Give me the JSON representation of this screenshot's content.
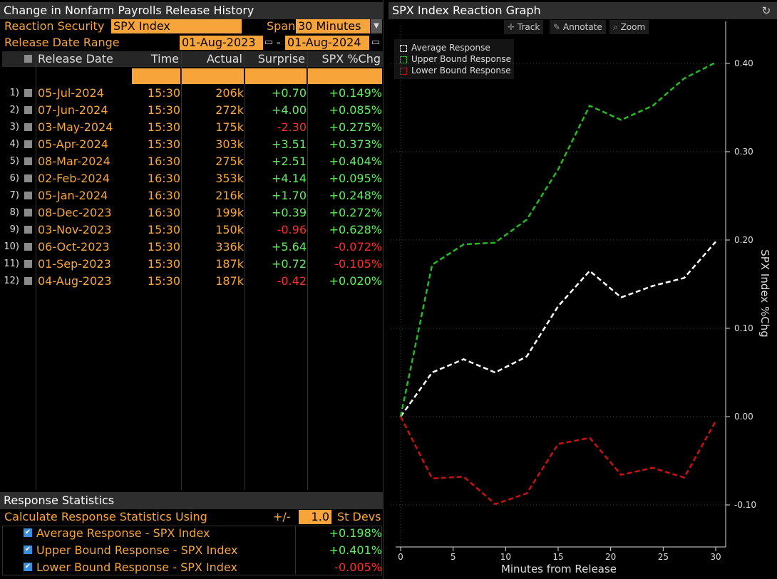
{
  "left_panel": {
    "title": "Change in Nonfarm Payrolls Release History",
    "reaction_security_label": "Reaction Security",
    "reaction_security_value": "SPX Index",
    "span_label": "Span",
    "span_value": "30 Minutes",
    "release_range_label": "Release Date Range",
    "range_start": "01-Aug-2023",
    "range_end": "01-Aug-2024",
    "range_sep": "-",
    "columns": [
      "Release Date",
      "Time",
      "Actual",
      "Surprise",
      "SPX %Chg"
    ],
    "rows": [
      {
        "idx": "1)",
        "date": "05-Jul-2024",
        "time": "15:30",
        "actual": "206k",
        "surprise": "+0.70",
        "chg": "+0.149%"
      },
      {
        "idx": "2)",
        "date": "07-Jun-2024",
        "time": "15:30",
        "actual": "272k",
        "surprise": "+4.00",
        "chg": "+0.085%"
      },
      {
        "idx": "3)",
        "date": "03-May-2024",
        "time": "15:30",
        "actual": "175k",
        "surprise": "-2.30",
        "chg": "+0.275%"
      },
      {
        "idx": "4)",
        "date": "05-Apr-2024",
        "time": "15:30",
        "actual": "303k",
        "surprise": "+3.51",
        "chg": "+0.373%"
      },
      {
        "idx": "5)",
        "date": "08-Mar-2024",
        "time": "16:30",
        "actual": "275k",
        "surprise": "+2.51",
        "chg": "+0.404%"
      },
      {
        "idx": "6)",
        "date": "02-Feb-2024",
        "time": "16:30",
        "actual": "353k",
        "surprise": "+4.14",
        "chg": "+0.095%"
      },
      {
        "idx": "7)",
        "date": "05-Jan-2024",
        "time": "16:30",
        "actual": "216k",
        "surprise": "+1.70",
        "chg": "+0.248%"
      },
      {
        "idx": "8)",
        "date": "08-Dec-2023",
        "time": "16:30",
        "actual": "199k",
        "surprise": "+0.39",
        "chg": "+0.272%"
      },
      {
        "idx": "9)",
        "date": "03-Nov-2023",
        "time": "15:30",
        "actual": "150k",
        "surprise": "-0.96",
        "chg": "+0.628%"
      },
      {
        "idx": "10)",
        "date": "06-Oct-2023",
        "time": "15:30",
        "actual": "336k",
        "surprise": "+5.64",
        "chg": "-0.072%"
      },
      {
        "idx": "11)",
        "date": "01-Sep-2023",
        "time": "15:30",
        "actual": "187k",
        "surprise": "+0.72",
        "chg": "-0.105%"
      },
      {
        "idx": "12)",
        "date": "04-Aug-2023",
        "time": "15:30",
        "actual": "187k",
        "surprise": "-0.42",
        "chg": "+0.020%"
      }
    ],
    "stats": {
      "title": "Response Statistics",
      "calc_label": "Calculate Response Statistics Using",
      "pm": "+/-",
      "stdev_value": "1.0",
      "stdev_label": "St Devs",
      "items": [
        {
          "label": "Average Response - SPX Index",
          "value": "+0.198%"
        },
        {
          "label": "Upper Bound Response - SPX Index",
          "value": "+0.401%"
        },
        {
          "label": "Lower Bound Response - SPX Index",
          "value": "-0.005%"
        }
      ]
    }
  },
  "right_panel": {
    "title": "SPX Index Reaction Graph",
    "toolbar": {
      "track": "Track",
      "annotate": "Annotate",
      "zoom": "Zoom"
    }
  },
  "colors": {
    "orange": "#f7a53a",
    "positive": "#5ef05e",
    "negative": "#ff2c2c",
    "average": "#ffffff",
    "upper": "#22bb22",
    "lower": "#cc1111"
  },
  "chart_data": {
    "type": "line",
    "xlabel": "Minutes from Release",
    "ylabel": "SPX Index %Chg",
    "xlim": [
      0,
      30
    ],
    "ylim": [
      -0.15,
      0.45
    ],
    "xticks": [
      0,
      5,
      10,
      15,
      20,
      25,
      30
    ],
    "yticks": [
      -0.1,
      0.0,
      0.1,
      0.2,
      0.3,
      0.4
    ],
    "ytick_labels": [
      "-0.10",
      "0.00",
      "0.10",
      "0.20",
      "0.30",
      "0.40"
    ],
    "legend_position": "top-left",
    "grid": false,
    "x": [
      0,
      3,
      6,
      9,
      12,
      15,
      18,
      21,
      24,
      27,
      30
    ],
    "series": [
      {
        "name": "Average Response",
        "values": [
          0.0,
          0.05,
          0.065,
          0.05,
          0.068,
          0.125,
          0.165,
          0.135,
          0.148,
          0.157,
          0.198
        ]
      },
      {
        "name": "Upper Bound Response",
        "values": [
          0.0,
          0.172,
          0.195,
          0.197,
          0.223,
          0.28,
          0.352,
          0.336,
          0.352,
          0.383,
          0.401
        ]
      },
      {
        "name": "Lower Bound Response",
        "values": [
          0.0,
          -0.07,
          -0.068,
          -0.099,
          -0.087,
          -0.031,
          -0.024,
          -0.066,
          -0.058,
          -0.069,
          -0.005
        ]
      }
    ]
  }
}
